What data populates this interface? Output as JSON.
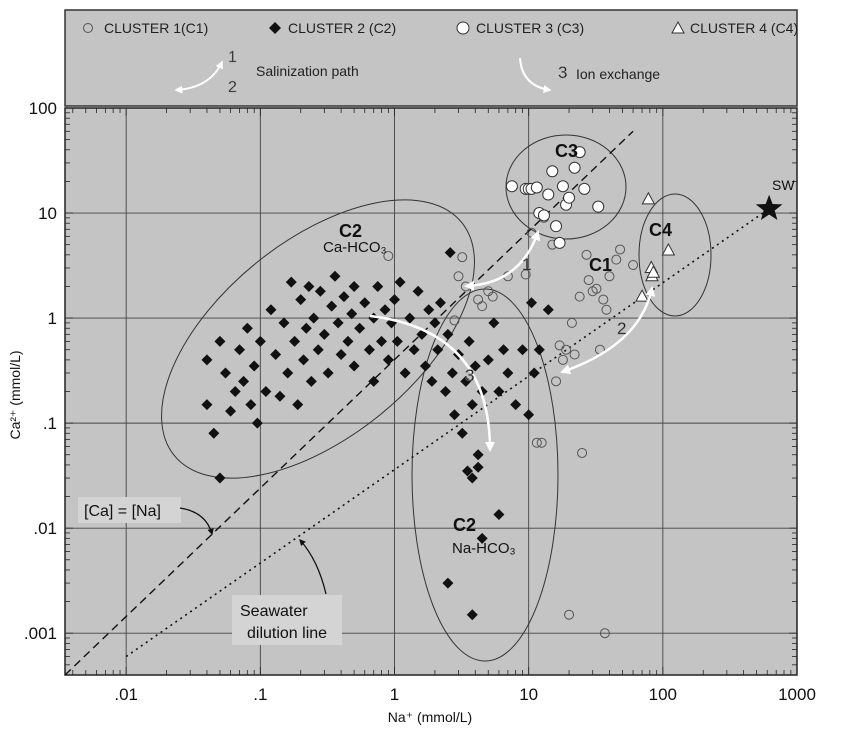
{
  "chart_data": {
    "type": "scatter",
    "title": "",
    "xlabel": "Na⁺ (mmol/L)",
    "ylabel": "Ca²⁺ (mmol/L)",
    "xscale": "log",
    "yscale": "log",
    "xlim": [
      0.0035,
      1000
    ],
    "ylim": [
      0.0004,
      100
    ],
    "x_ticks": [
      {
        "value": 0.01,
        "label": ".01"
      },
      {
        "value": 0.1,
        "label": ".1"
      },
      {
        "value": 1,
        "label": "1"
      },
      {
        "value": 10,
        "label": "10"
      },
      {
        "value": 100,
        "label": "100"
      },
      {
        "value": 1000,
        "label": "1000"
      }
    ],
    "y_ticks": [
      {
        "value": 0.001,
        "label": ".001"
      },
      {
        "value": 0.01,
        "label": ".01"
      },
      {
        "value": 0.1,
        "label": ".1"
      },
      {
        "value": 1,
        "label": "1"
      },
      {
        "value": 10,
        "label": "10"
      },
      {
        "value": 100,
        "label": "100"
      }
    ],
    "grid": true,
    "legend_position": "top",
    "legend": {
      "entries": [
        {
          "label": "CLUSTER 1(C1)",
          "marker": "open-circle-small"
        },
        {
          "label": "CLUSTER 2 (C2)",
          "marker": "filled-diamond"
        },
        {
          "label": "CLUSTER 3 (C3)",
          "marker": "open-circle-large"
        },
        {
          "label": "CLUSTER 4 (C4)",
          "marker": "open-triangle"
        }
      ],
      "paths": [
        {
          "numbers": [
            "1",
            "2"
          ],
          "label": "Salinization path"
        },
        {
          "number": "3",
          "label": "Ion exchange"
        }
      ]
    },
    "series": [
      {
        "name": "CLUSTER 1(C1)",
        "marker": "open-circle-small",
        "points": [
          [
            0.9,
            3.9
          ],
          [
            2.8,
            0.95
          ],
          [
            3.0,
            2.5
          ],
          [
            3.2,
            3.8
          ],
          [
            3.4,
            2.0
          ],
          [
            4.2,
            1.5
          ],
          [
            4.5,
            1.3
          ],
          [
            5.0,
            1.8
          ],
          [
            5.4,
            1.6
          ],
          [
            7.0,
            2.5
          ],
          [
            9.5,
            2.6
          ],
          [
            10.5,
            6.5
          ],
          [
            11.5,
            0.065
          ],
          [
            12.5,
            0.065
          ],
          [
            13.0,
            9.0
          ],
          [
            15.0,
            5.0
          ],
          [
            16.0,
            0.25
          ],
          [
            17.0,
            0.55
          ],
          [
            18.0,
            0.4
          ],
          [
            19.0,
            0.5
          ],
          [
            21.0,
            0.9
          ],
          [
            22.0,
            0.45
          ],
          [
            24.0,
            1.6
          ],
          [
            25.0,
            0.052
          ],
          [
            27.0,
            4.0
          ],
          [
            28.0,
            2.3
          ],
          [
            30.0,
            1.8
          ],
          [
            32.0,
            1.9
          ],
          [
            34.0,
            0.5
          ],
          [
            36.0,
            1.5
          ],
          [
            38.0,
            1.2
          ],
          [
            40.0,
            2.5
          ],
          [
            45.0,
            3.6
          ],
          [
            48.0,
            4.5
          ],
          [
            60.0,
            3.2
          ],
          [
            20.0,
            0.0015
          ],
          [
            37.0,
            0.001
          ]
        ]
      },
      {
        "name": "CLUSTER 2 (C2)",
        "marker": "filled-diamond",
        "points": [
          [
            0.04,
            0.4
          ],
          [
            0.045,
            0.08
          ],
          [
            0.05,
            0.6
          ],
          [
            0.055,
            0.3
          ],
          [
            0.06,
            0.13
          ],
          [
            0.065,
            0.2
          ],
          [
            0.07,
            0.5
          ],
          [
            0.075,
            0.25
          ],
          [
            0.08,
            0.8
          ],
          [
            0.085,
            0.15
          ],
          [
            0.09,
            0.35
          ],
          [
            0.095,
            0.1
          ],
          [
            0.1,
            0.6
          ],
          [
            0.11,
            0.2
          ],
          [
            0.12,
            1.2
          ],
          [
            0.13,
            0.45
          ],
          [
            0.14,
            0.18
          ],
          [
            0.15,
            0.9
          ],
          [
            0.16,
            0.3
          ],
          [
            0.17,
            2.2
          ],
          [
            0.18,
            0.6
          ],
          [
            0.19,
            0.15
          ],
          [
            0.2,
            1.5
          ],
          [
            0.21,
            0.4
          ],
          [
            0.22,
            0.8
          ],
          [
            0.23,
            2.0
          ],
          [
            0.24,
            0.25
          ],
          [
            0.25,
            1.0
          ],
          [
            0.27,
            0.5
          ],
          [
            0.28,
            1.8
          ],
          [
            0.3,
            0.7
          ],
          [
            0.32,
            0.3
          ],
          [
            0.34,
            1.3
          ],
          [
            0.36,
            2.5
          ],
          [
            0.38,
            0.9
          ],
          [
            0.4,
            0.45
          ],
          [
            0.42,
            1.6
          ],
          [
            0.45,
            0.6
          ],
          [
            0.48,
            1.1
          ],
          [
            0.5,
            2.0
          ],
          [
            0.55,
            0.8
          ],
          [
            0.6,
            1.4
          ],
          [
            0.65,
            0.5
          ],
          [
            0.7,
            1.0
          ],
          [
            0.75,
            2.0
          ],
          [
            0.8,
            0.6
          ],
          [
            0.85,
            1.2
          ],
          [
            0.9,
            0.4
          ],
          [
            0.95,
            0.9
          ],
          [
            1.0,
            1.5
          ],
          [
            1.05,
            0.6
          ],
          [
            1.1,
            2.2
          ],
          [
            1.2,
            0.3
          ],
          [
            1.3,
            1.0
          ],
          [
            1.4,
            0.5
          ],
          [
            1.5,
            1.8
          ],
          [
            1.6,
            0.7
          ],
          [
            1.7,
            0.35
          ],
          [
            1.8,
            1.2
          ],
          [
            1.9,
            0.25
          ],
          [
            2.0,
            0.9
          ],
          [
            2.1,
            0.5
          ],
          [
            2.2,
            1.4
          ],
          [
            2.4,
            0.2
          ],
          [
            2.5,
            0.7
          ],
          [
            2.6,
            4.2
          ],
          [
            2.7,
            0.3
          ],
          [
            2.8,
            0.12
          ],
          [
            3.0,
            0.45
          ],
          [
            3.2,
            0.08
          ],
          [
            3.4,
            0.25
          ],
          [
            3.6,
            0.6
          ],
          [
            3.8,
            0.15
          ],
          [
            4.0,
            0.35
          ],
          [
            4.2,
            0.05
          ],
          [
            4.5,
            0.2
          ],
          [
            5.0,
            0.4
          ],
          [
            5.5,
            0.9
          ],
          [
            6.0,
            0.2
          ],
          [
            6.5,
            0.5
          ],
          [
            7.0,
            0.3
          ],
          [
            8.0,
            0.15
          ],
          [
            9.0,
            0.5
          ],
          [
            10.0,
            0.12
          ],
          [
            10.5,
            1.4
          ],
          [
            11.0,
            0.3
          ],
          [
            12.0,
            0.5
          ],
          [
            14.0,
            1.2
          ],
          [
            3.5,
            0.035
          ],
          [
            3.8,
            0.03
          ],
          [
            4.2,
            0.038
          ],
          [
            4.5,
            0.008
          ],
          [
            6.0,
            0.0135
          ],
          [
            2.5,
            0.003
          ],
          [
            3.8,
            0.0015
          ],
          [
            0.05,
            0.03
          ],
          [
            0.04,
            0.15
          ],
          [
            0.5,
            0.35
          ],
          [
            0.7,
            0.25
          ]
        ]
      },
      {
        "name": "CLUSTER 3 (C3)",
        "marker": "open-circle-large",
        "points": [
          [
            7.5,
            18
          ],
          [
            9.5,
            17
          ],
          [
            10.0,
            17
          ],
          [
            10.5,
            17
          ],
          [
            11.5,
            17.5
          ],
          [
            12.0,
            10
          ],
          [
            13.0,
            9.5
          ],
          [
            14.0,
            15
          ],
          [
            15.0,
            25
          ],
          [
            18.0,
            18
          ],
          [
            19.0,
            12
          ],
          [
            22.0,
            27
          ],
          [
            24.0,
            38
          ],
          [
            26.0,
            17
          ],
          [
            33.0,
            11.5
          ],
          [
            17.0,
            5.2
          ],
          [
            16.0,
            7.5
          ],
          [
            20.0,
            14
          ]
        ]
      },
      {
        "name": "CLUSTER 4 (C4)",
        "marker": "open-triangle",
        "points": [
          [
            70,
            1.6
          ],
          [
            78,
            13.5
          ],
          [
            82,
            3.0
          ],
          [
            83,
            2.5
          ],
          [
            85,
            2.7
          ],
          [
            110,
            4.4
          ]
        ]
      }
    ],
    "reference_lines": [
      {
        "label": "[Ca] = [Na]",
        "style": "dashed",
        "points": [
          [
            0.0035,
            0.0004
          ],
          [
            60,
            60
          ]
        ]
      },
      {
        "label": "Seawater dilution line",
        "style": "dotted",
        "points": [
          [
            0.01,
            0.0006
          ],
          [
            620,
            11
          ]
        ]
      }
    ],
    "seawater_point": {
      "label": "SW",
      "x": 620,
      "y": 11
    },
    "annotations": [
      {
        "text": "C2",
        "sub": "Ca-HCO₃"
      },
      {
        "text": "C2",
        "sub": "Na-HCO₃"
      },
      {
        "text": "C3"
      },
      {
        "text": "C1"
      },
      {
        "text": "C4"
      },
      {
        "text": "1"
      },
      {
        "text": "2"
      },
      {
        "text": "3"
      }
    ]
  }
}
